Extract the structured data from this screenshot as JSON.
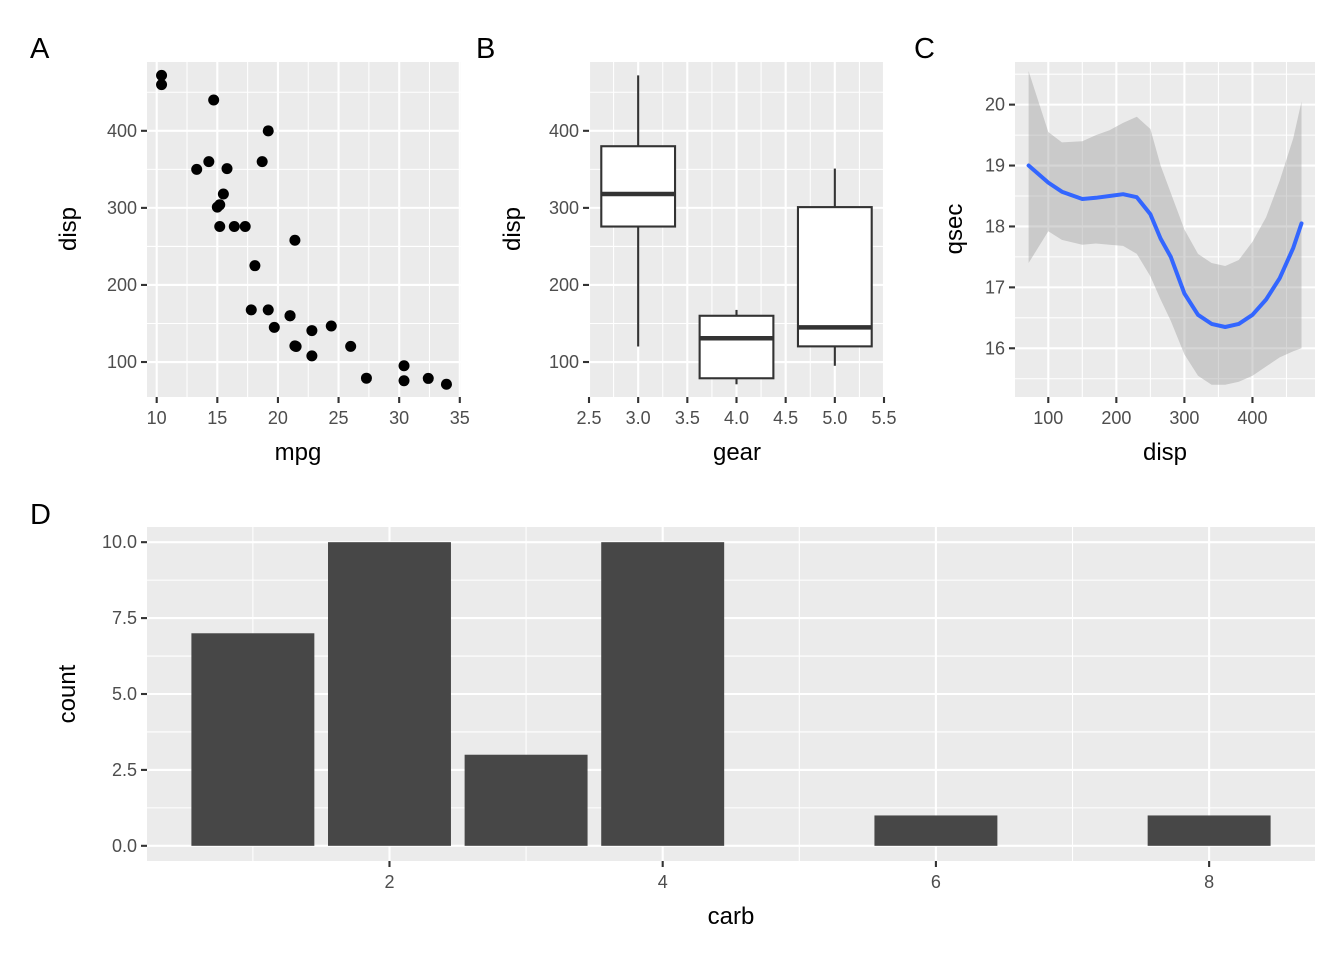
{
  "chart_data": [
    {
      "tag": "A",
      "type": "scatter",
      "xlabel": "mpg",
      "ylabel": "disp",
      "xlim": [
        9.2,
        35.1
      ],
      "ylim": [
        54.6,
        489.3
      ],
      "xticks": [
        10,
        15,
        20,
        25,
        30,
        35
      ],
      "yticks": [
        100,
        200,
        300,
        400
      ],
      "points": [
        [
          21.0,
          160.0
        ],
        [
          21.0,
          160.0
        ],
        [
          22.8,
          108.0
        ],
        [
          21.4,
          258.0
        ],
        [
          18.7,
          360.0
        ],
        [
          18.1,
          225.0
        ],
        [
          14.3,
          360.0
        ],
        [
          24.4,
          146.7
        ],
        [
          22.8,
          140.8
        ],
        [
          19.2,
          167.6
        ],
        [
          17.8,
          167.6
        ],
        [
          16.4,
          275.8
        ],
        [
          17.3,
          275.8
        ],
        [
          15.2,
          275.8
        ],
        [
          10.4,
          472.0
        ],
        [
          10.4,
          460.0
        ],
        [
          14.7,
          440.0
        ],
        [
          32.4,
          78.7
        ],
        [
          30.4,
          75.7
        ],
        [
          33.9,
          71.1
        ],
        [
          21.5,
          120.1
        ],
        [
          15.5,
          318.0
        ],
        [
          15.2,
          304.0
        ],
        [
          13.3,
          350.0
        ],
        [
          19.2,
          400.0
        ],
        [
          27.3,
          79.0
        ],
        [
          26.0,
          120.3
        ],
        [
          30.4,
          95.1
        ],
        [
          15.8,
          351.0
        ],
        [
          19.7,
          145.0
        ],
        [
          15.0,
          301.0
        ],
        [
          21.4,
          121.0
        ]
      ]
    },
    {
      "tag": "B",
      "type": "box",
      "xlabel": "gear",
      "ylabel": "disp",
      "xlim": [
        2.5,
        5.5
      ],
      "ylim": [
        54.6,
        489.3
      ],
      "xticks": [
        "2.5",
        "3.0",
        "3.5",
        "4.0",
        "4.5",
        "5.0",
        "5.5"
      ],
      "yticks": [
        100,
        200,
        300,
        400
      ],
      "boxes": [
        {
          "x": 3.0,
          "whisker_low": 120.1,
          "q1": 275.8,
          "median": 318.0,
          "q3": 380.0,
          "whisker_high": 472.0
        },
        {
          "x": 4.0,
          "whisker_low": 71.1,
          "q1": 78.9,
          "median": 130.9,
          "q3": 160.0,
          "whisker_high": 167.6
        },
        {
          "x": 5.0,
          "whisker_low": 95.1,
          "q1": 120.3,
          "median": 145.0,
          "q3": 301.0,
          "whisker_high": 351.0
        }
      ]
    },
    {
      "tag": "C",
      "type": "line",
      "xlabel": "disp",
      "ylabel": "qsec",
      "xlim": [
        51.1,
        491.9
      ],
      "ylim": [
        15.2,
        20.7
      ],
      "xticks": [
        100,
        200,
        300,
        400
      ],
      "yticks": [
        16,
        17,
        18,
        19,
        20
      ],
      "line_color": "#3366ff",
      "band_color": "#999999",
      "series": [
        {
          "x": [
            71.1,
            100,
            120,
            150,
            170,
            190,
            210,
            230,
            250,
            265,
            280,
            300,
            320,
            340,
            360,
            380,
            400,
            420,
            440,
            460,
            472
          ],
          "y": [
            19.0,
            18.72,
            18.57,
            18.45,
            18.47,
            18.5,
            18.53,
            18.48,
            18.2,
            17.8,
            17.5,
            16.9,
            16.55,
            16.4,
            16.35,
            16.4,
            16.55,
            16.8,
            17.15,
            17.65,
            18.05
          ],
          "lower": [
            17.4,
            17.92,
            17.78,
            17.7,
            17.72,
            17.7,
            17.68,
            17.55,
            17.18,
            16.8,
            16.45,
            15.9,
            15.55,
            15.4,
            15.4,
            15.45,
            15.55,
            15.7,
            15.85,
            15.95,
            16.0
          ],
          "upper": [
            20.55,
            19.55,
            19.38,
            19.4,
            19.5,
            19.58,
            19.7,
            19.8,
            19.6,
            19.0,
            18.55,
            17.95,
            17.55,
            17.4,
            17.35,
            17.45,
            17.75,
            18.15,
            18.75,
            19.45,
            20.05
          ]
        }
      ]
    },
    {
      "tag": "D",
      "type": "bar",
      "xlabel": "carb",
      "ylabel": "count",
      "xlim": [
        0.225,
        8.775
      ],
      "ylim": [
        -0.5,
        10.5
      ],
      "xticks": [
        2,
        4,
        6,
        8
      ],
      "yticks": [
        "0.0",
        "2.5",
        "5.0",
        "7.5",
        "10.0"
      ],
      "bar_color": "#474747",
      "categories": [
        1,
        2,
        3,
        4,
        6,
        8
      ],
      "values": [
        7,
        10,
        3,
        10,
        1,
        1
      ]
    }
  ]
}
